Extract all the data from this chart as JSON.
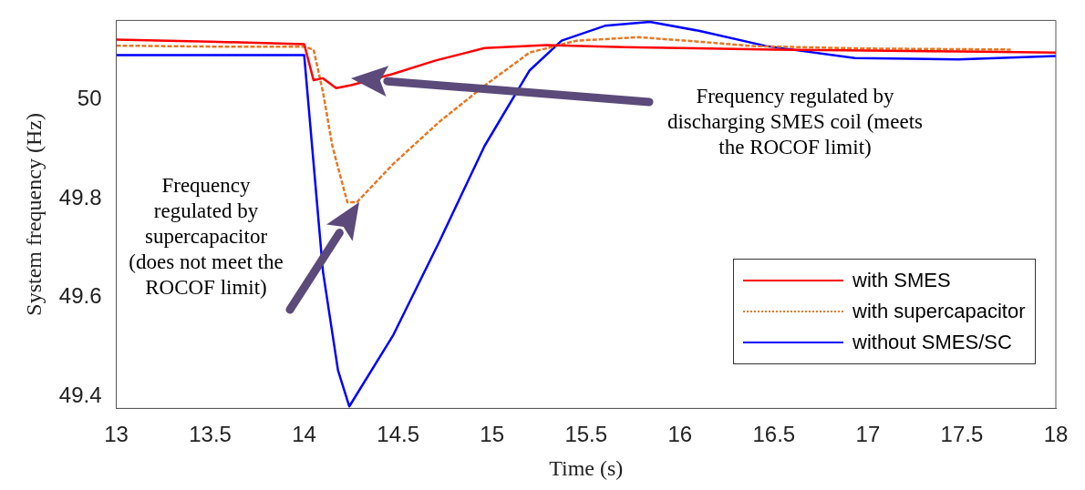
{
  "chart_data": {
    "type": "line",
    "xlabel": "Time (s)",
    "ylabel": "System frequency (Hz)",
    "xlim": [
      13,
      18
    ],
    "xticks": [
      13,
      13.5,
      14,
      14.5,
      15,
      15.5,
      16,
      16.5,
      17,
      17.5,
      18
    ],
    "ylim": [
      49.376,
      50.161
    ],
    "yticks": [
      49.4,
      49.6,
      49.8,
      50
    ],
    "grid": false,
    "legend": "bottom right",
    "marker": "none",
    "series": [
      {
        "name": "with SMES",
        "color": "#ff0000",
        "line_style": "solid",
        "x": [
          13,
          13.5,
          14,
          14.05,
          14.1,
          14.17,
          14.25,
          14.475,
          14.7,
          14.96,
          15.29,
          15.7,
          16,
          16.5,
          17,
          17.5,
          18
        ],
        "values": [
          50.122,
          50.118,
          50.113,
          50.04,
          50.044,
          50.024,
          50.03,
          50.053,
          50.08,
          50.105,
          50.111,
          50.107,
          50.105,
          50.102,
          50.1,
          50.098,
          50.096
        ]
      },
      {
        "name": "with supercapacitor",
        "color": "#e87722",
        "line_style": "dashed",
        "x": [
          13,
          13.5,
          14,
          14.05,
          14.1,
          14.15,
          14.2,
          14.23,
          14.28,
          14.475,
          14.72,
          14.96,
          15.2,
          15.45,
          15.78,
          16.1,
          16.39,
          17,
          17.4,
          17.76
        ],
        "values": [
          50.11,
          50.108,
          50.108,
          50.102,
          50.016,
          49.907,
          49.835,
          49.793,
          49.793,
          49.871,
          49.956,
          50.029,
          50.096,
          50.12,
          50.127,
          50.118,
          50.109,
          50.104,
          50.103,
          50.102
        ]
      },
      {
        "name": "without SMES/SC",
        "color": "#0000ff",
        "line_style": "solid",
        "x": [
          13,
          14,
          14.1,
          14.18,
          14.24,
          14.475,
          14.72,
          14.96,
          15.2,
          15.37,
          15.6,
          15.84,
          16.1,
          16.46,
          16.93,
          17.48,
          18
        ],
        "values": [
          50.091,
          50.091,
          49.653,
          49.453,
          49.38,
          49.525,
          49.714,
          49.907,
          50.06,
          50.12,
          50.15,
          50.158,
          50.14,
          50.109,
          50.085,
          50.082,
          50.089
        ]
      }
    ],
    "annotations": [
      "Frequency regulated by discharging SMES coil (meets the ROCOF limit)",
      "Frequency regulated by supercapacitor (does not meet the ROCOF limit)"
    ]
  }
}
